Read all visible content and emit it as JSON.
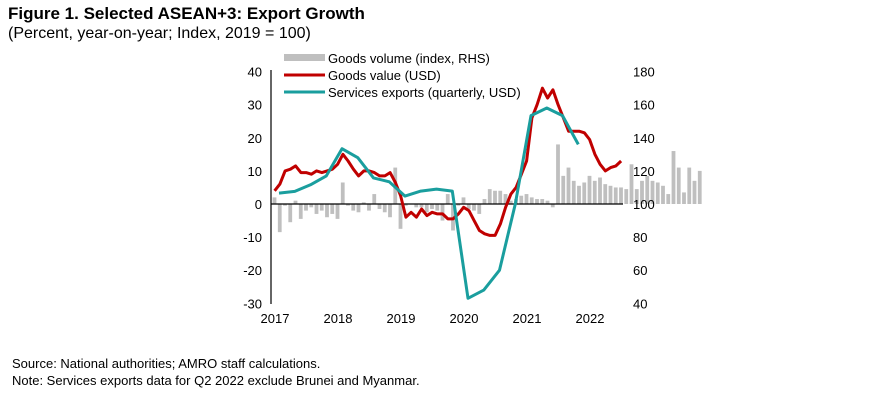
{
  "chart_data": {
    "type": "bar+line",
    "title": "Figure 1. Selected ASEAN+3: Export Growth",
    "subtitle": "(Percent, year-on-year; Index, 2019 = 100)",
    "x_tick_labels": [
      "2017",
      "2018",
      "2019",
      "2020",
      "2021",
      "2022"
    ],
    "y_left": {
      "ticks": [
        40,
        30,
        20,
        10,
        0,
        -10,
        -20,
        -30
      ],
      "ylim": [
        -30,
        40
      ]
    },
    "y_right": {
      "ticks": [
        180,
        160,
        140,
        120,
        100,
        80,
        60,
        40
      ],
      "ylim": [
        40,
        180
      ]
    },
    "legend": {
      "placement": "top-left",
      "entries": [
        "Goods volume (index, RHS)",
        "Goods value (USD)",
        "Services exports (quarterly, USD)"
      ]
    },
    "colors": {
      "goods_volume": "#bfbfbf",
      "goods_value": "#c00000",
      "services": "#1a9e9e"
    },
    "series": [
      {
        "name": "Goods volume (index, RHS)",
        "axis": "right",
        "type": "bar",
        "frequency": "monthly",
        "start": "2017-01",
        "values": [
          104,
          83,
          99,
          89,
          102,
          91,
          96,
          98,
          94,
          96,
          92,
          94,
          91,
          113,
          99,
          96,
          95,
          101,
          96,
          106,
          97,
          95,
          92,
          122,
          85,
          99,
          100,
          98,
          98,
          95,
          97,
          96,
          90,
          106,
          84,
          99,
          104,
          97,
          96,
          94,
          103,
          109,
          108,
          108,
          106,
          102,
          103,
          105,
          106,
          104,
          103,
          103,
          102,
          98,
          136,
          117,
          122,
          114,
          111,
          113,
          117,
          114,
          116,
          112,
          111,
          110,
          110,
          109,
          124,
          109,
          114,
          117,
          114,
          113,
          111,
          106,
          132,
          122,
          107,
          122,
          114,
          120
        ]
      },
      {
        "name": "Goods value (USD)",
        "axis": "left",
        "type": "line",
        "frequency": "monthly",
        "start": "2017-01",
        "values": [
          4,
          6,
          10,
          10.5,
          11.5,
          9.5,
          9.5,
          9,
          10,
          9.5,
          10,
          10.5,
          12,
          15,
          13,
          10.5,
          8.5,
          10,
          10,
          9.5,
          8.5,
          8.5,
          9.5,
          6.5,
          2.5,
          -4,
          -2.5,
          -4,
          -1.5,
          -3.5,
          -2.5,
          -3,
          -3,
          -4.5,
          -4.5,
          -3,
          -1,
          -2,
          -5,
          -8,
          -9,
          -9.5,
          -9.5,
          -6,
          -1,
          3,
          5,
          9,
          13,
          26,
          30,
          35,
          32,
          34.5,
          30,
          26,
          22,
          22,
          22,
          21.5,
          19.5,
          15,
          12,
          10,
          11,
          11.5,
          13
        ]
      },
      {
        "name": "Services exports (quarterly, USD)",
        "axis": "left",
        "type": "line",
        "frequency": "quarterly",
        "start": "2017-Q1",
        "values": [
          3.3,
          3.8,
          5.8,
          8.5,
          16.7,
          14,
          7.9,
          6.7,
          2.4,
          3.9,
          4.5,
          3.9,
          -28.5,
          -26,
          -20,
          0,
          26.7,
          29,
          26.7,
          18
        ]
      }
    ]
  },
  "source": "Source: National authorities; AMRO staff calculations.",
  "note": "Note: Services exports data for Q2 2022 exclude Brunei and Myanmar."
}
